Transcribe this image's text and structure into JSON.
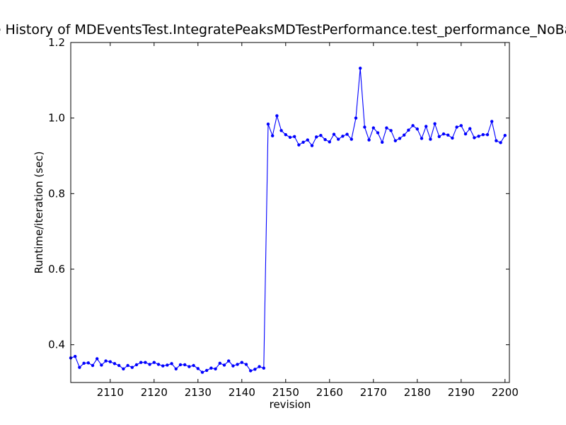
{
  "chart_data": {
    "type": "line",
    "title": "Runtime History of MDEventsTest.IntegratePeaksMDTestPerformance.test_performance_NoBackground",
    "xlabel": "revision",
    "ylabel": "Runtime/iteration (sec)",
    "xlim": [
      2101,
      2201
    ],
    "ylim": [
      0.3,
      1.2
    ],
    "xticks": [
      2110,
      2120,
      2130,
      2140,
      2150,
      2160,
      2170,
      2180,
      2190,
      2200
    ],
    "yticks": [
      0.4,
      0.6,
      0.8,
      1.0,
      1.2
    ],
    "xtick_labels": [
      "2110",
      "2120",
      "2130",
      "2140",
      "2150",
      "2160",
      "2170",
      "2180",
      "2190",
      "2200"
    ],
    "ytick_labels": [
      "0.4",
      "0.6",
      "0.8",
      "1.0",
      "1.2"
    ],
    "grid": false,
    "line_color": "#0000ff",
    "marker": "point",
    "series": [
      {
        "x": [
          2101,
          2102,
          2103,
          2104,
          2105,
          2106,
          2107,
          2108,
          2109,
          2110,
          2111,
          2112,
          2113,
          2114,
          2115,
          2116,
          2117,
          2118,
          2119,
          2120,
          2121,
          2122,
          2123,
          2124,
          2125,
          2126,
          2127,
          2128,
          2129,
          2130,
          2131,
          2132,
          2133,
          2134,
          2135,
          2136,
          2137,
          2138,
          2139,
          2140,
          2141,
          2142,
          2143,
          2144,
          2145,
          2146,
          2147,
          2148,
          2149,
          2150,
          2151,
          2152,
          2153,
          2154,
          2155,
          2156,
          2157,
          2158,
          2159,
          2160,
          2161,
          2162,
          2163,
          2164,
          2165,
          2166,
          2167,
          2168,
          2169,
          2170,
          2171,
          2172,
          2173,
          2174,
          2175,
          2176,
          2177,
          2178,
          2179,
          2180,
          2181,
          2182,
          2183,
          2184,
          2185,
          2186,
          2187,
          2188,
          2189,
          2190,
          2191,
          2192,
          2193,
          2194,
          2195,
          2196,
          2197,
          2198,
          2199,
          2200
        ],
        "y": [
          0.365,
          0.369,
          0.34,
          0.351,
          0.352,
          0.345,
          0.363,
          0.346,
          0.357,
          0.355,
          0.35,
          0.345,
          0.336,
          0.345,
          0.34,
          0.347,
          0.353,
          0.353,
          0.348,
          0.353,
          0.348,
          0.344,
          0.346,
          0.35,
          0.336,
          0.347,
          0.347,
          0.342,
          0.345,
          0.337,
          0.327,
          0.332,
          0.338,
          0.336,
          0.351,
          0.346,
          0.357,
          0.344,
          0.348,
          0.353,
          0.348,
          0.331,
          0.335,
          0.342,
          0.338,
          0.984,
          0.953,
          1.006,
          0.967,
          0.956,
          0.949,
          0.951,
          0.929,
          0.936,
          0.942,
          0.927,
          0.95,
          0.954,
          0.943,
          0.937,
          0.957,
          0.944,
          0.952,
          0.957,
          0.944,
          1.0,
          1.132,
          0.976,
          0.942,
          0.974,
          0.961,
          0.936,
          0.974,
          0.967,
          0.94,
          0.946,
          0.955,
          0.968,
          0.98,
          0.971,
          0.946,
          0.978,
          0.944,
          0.985,
          0.951,
          0.958,
          0.955,
          0.947,
          0.976,
          0.98,
          0.958,
          0.972,
          0.948,
          0.952,
          0.956,
          0.956,
          0.991,
          0.94,
          0.935,
          0.954
        ]
      }
    ]
  }
}
